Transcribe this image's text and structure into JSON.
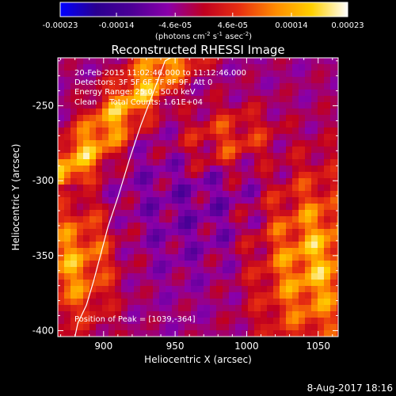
{
  "title": "Reconstructed RHESSI Image",
  "colorbar": {
    "tick_labels": [
      "-0.00023",
      "-0.00014",
      "-4.6e-05",
      "4.6e-05",
      "0.00014",
      "0.00023"
    ],
    "tick_values": [
      -0.00023,
      -0.00014,
      -4.6e-05,
      4.6e-05,
      0.00014,
      0.00023
    ],
    "range": [
      -0.00023,
      0.00023
    ],
    "units_text": "(photons cm",
    "units_text_2": " s",
    "units_text_3": " asec",
    "units_text_4": ")",
    "units_exp_1": "-2",
    "units_exp_2": "-1",
    "units_exp_3": "-2",
    "colormap": [
      "#0000ff",
      "#2a0090",
      "#4d0096",
      "#8a00aa",
      "#c00020",
      "#e83010",
      "#ff8c00",
      "#ffd000",
      "#ffffff"
    ]
  },
  "annotations": {
    "time_range": "20-Feb-2015 11:02:46.000 to 11:12:46.000",
    "detectors": "Detectors: 3F 5F 6F 7F 8F 9F, Att 0",
    "energy_range": "Energy Range: 25.0 - 50.0 keV",
    "clean_info": "Clean     Total Counts: 1.61E+04",
    "peak_position": "Position of Peak = [1039,-364]"
  },
  "x_axis": {
    "label": "Heliocentric X (arcsec)",
    "range": [
      868,
      1064
    ],
    "tick_labels": [
      "900",
      "950",
      "1000",
      "1050"
    ],
    "tick_values": [
      900,
      950,
      1000,
      1050
    ]
  },
  "y_axis": {
    "label": "Heliocentric Y (arcsec)",
    "range": [
      -404,
      -218
    ],
    "tick_labels": [
      "-250",
      "-300",
      "-350",
      "-400"
    ],
    "tick_values": [
      -250,
      -300,
      -350,
      -400
    ]
  },
  "limb_line": {
    "x": [
      880,
      882,
      888,
      893,
      898,
      903,
      910,
      918,
      926,
      934,
      943,
      947
    ],
    "y": [
      -404,
      -395,
      -383,
      -367,
      -349,
      -331,
      -311,
      -286,
      -263,
      -243,
      -220,
      -218
    ]
  },
  "footer_date": "8-Aug-2017 18:16"
}
